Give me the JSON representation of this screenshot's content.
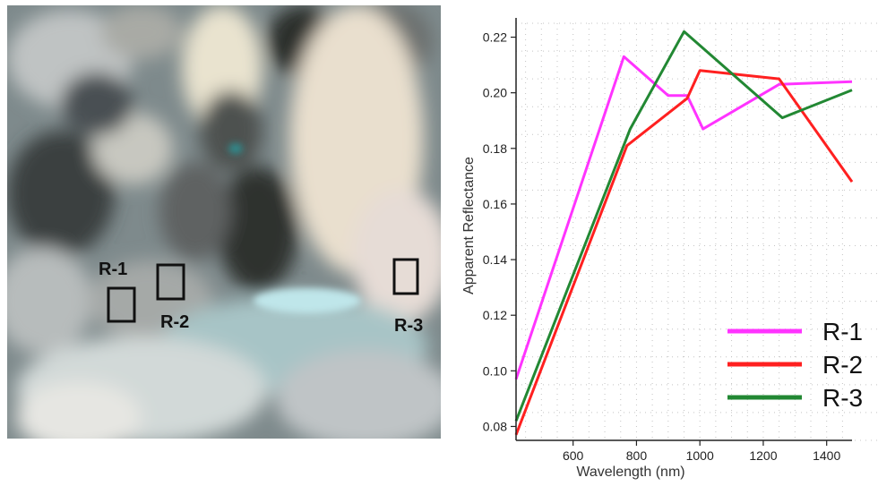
{
  "image": {
    "regions": [
      {
        "label": "R-1"
      },
      {
        "label": "R-2"
      },
      {
        "label": "R-3"
      }
    ]
  },
  "chart_data": {
    "type": "line",
    "title": "",
    "xlabel": "Wavelength (nm)",
    "ylabel": "Apparent Reflectance",
    "xlim": [
      420,
      1480
    ],
    "ylim": [
      0.075,
      0.225
    ],
    "xticks": [
      600,
      800,
      1000,
      1200,
      1400
    ],
    "yticks": [
      0.08,
      0.1,
      0.12,
      0.14,
      0.16,
      0.18,
      0.2,
      0.22
    ],
    "grid": true,
    "legend": "bottom-right",
    "series": [
      {
        "name": "R-1",
        "color": "#ff33ff",
        "x": [
          420,
          760,
          900,
          960,
          1010,
          1250,
          1480
        ],
        "y": [
          0.097,
          0.213,
          0.199,
          0.199,
          0.187,
          0.203,
          0.204
        ]
      },
      {
        "name": "R-2",
        "color": "#ff2020",
        "x": [
          420,
          770,
          960,
          1000,
          1250,
          1480
        ],
        "y": [
          0.077,
          0.181,
          0.198,
          0.208,
          0.205,
          0.168
        ]
      },
      {
        "name": "R-3",
        "color": "#228833",
        "x": [
          420,
          780,
          950,
          1260,
          1480
        ],
        "y": [
          0.082,
          0.187,
          0.222,
          0.191,
          0.201
        ]
      }
    ]
  }
}
